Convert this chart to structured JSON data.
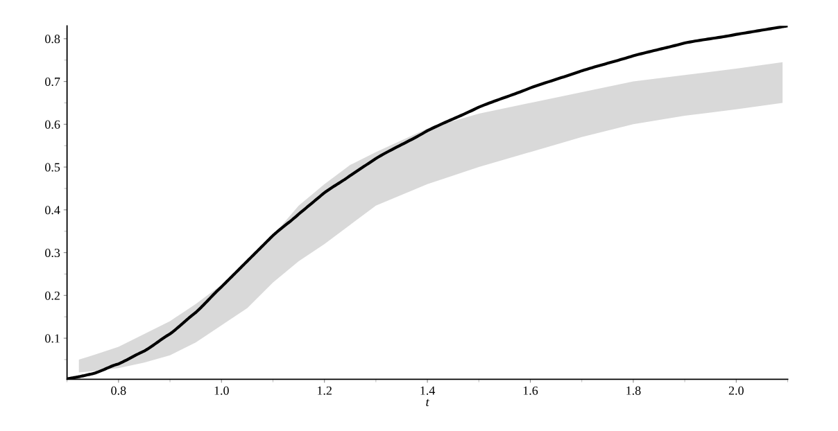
{
  "chart_data": {
    "type": "line",
    "xlabel": "t",
    "xlim": [
      0.7,
      2.1
    ],
    "ylim": [
      0.004,
      0.83
    ],
    "xticks": [
      0.8,
      {
        "value": 1.0,
        "label": "1.0"
      },
      1.2,
      1.4,
      1.6,
      1.8,
      {
        "value": 2.0,
        "label": "2.0"
      }
    ],
    "yticks": [
      0.1,
      0.2,
      0.3,
      0.4,
      0.5,
      0.6,
      0.7,
      0.8
    ],
    "series": [
      {
        "color": "#000000",
        "x": [
          0.7,
          0.723,
          0.75,
          0.8,
          0.85,
          0.9,
          0.95,
          1.0,
          1.05,
          1.1,
          1.15,
          1.2,
          1.25,
          1.3,
          1.4,
          1.5,
          1.6,
          1.7,
          1.8,
          1.9,
          2.0,
          2.09,
          2.1
        ],
        "values": [
          0.005,
          0.01,
          0.017,
          0.04,
          0.07,
          0.11,
          0.16,
          0.22,
          0.28,
          0.34,
          0.39,
          0.44,
          0.48,
          0.52,
          0.585,
          0.64,
          0.685,
          0.725,
          0.76,
          0.79,
          0.81,
          0.828,
          0.83
        ],
        "lower": [
          null,
          0.02,
          0.023,
          0.03,
          0.043,
          0.06,
          0.09,
          0.13,
          0.17,
          0.23,
          0.28,
          0.32,
          0.365,
          0.41,
          0.46,
          0.5,
          0.535,
          0.57,
          0.6,
          0.62,
          0.635,
          0.65,
          null
        ],
        "upper": [
          null,
          0.05,
          0.06,
          0.08,
          0.11,
          0.14,
          0.18,
          0.225,
          0.28,
          0.34,
          0.41,
          0.46,
          0.505,
          0.535,
          0.59,
          0.625,
          0.65,
          0.675,
          0.7,
          0.715,
          0.73,
          0.745,
          null
        ]
      }
    ]
  }
}
